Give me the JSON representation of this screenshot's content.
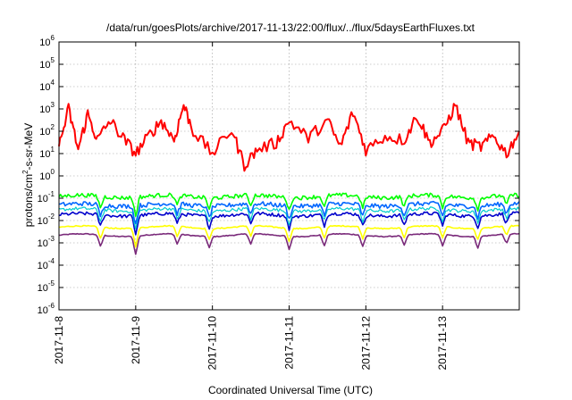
{
  "chart_data": {
    "type": "line",
    "title": "/data/run/goesPlots/archive/2017-11-13/22:00/flux/../flux/5daysEarthFluxes.txt",
    "xlabel": "Coordinated Universal Time (UTC)",
    "ylabel_parts": {
      "base": "protons/cm",
      "sup": "2",
      "rest": "-s-sr-MeV"
    },
    "xlim": [
      "2017-11-08",
      "2017-11-14"
    ],
    "x_ticks": [
      "2017-11-8",
      "2017-11-9",
      "2017-11-10",
      "2017-11-11",
      "2017-11-12",
      "2017-11-13"
    ],
    "y_scale": "log",
    "y_ticks_exp": [
      6,
      5,
      4,
      3,
      2,
      1,
      0,
      -1,
      -2,
      -3,
      -4,
      -5,
      -6
    ],
    "y_tick_base": "10",
    "ylim": [
      1e-06,
      1000000.0
    ],
    "grid": true,
    "legend": "none",
    "series": [
      {
        "color": "#ff0000",
        "width": 2.0,
        "typical": 30,
        "spread": 0.55,
        "anchors": [
          [
            "2017-11-08T00:00",
            20
          ],
          [
            "2017-11-08T03:00",
            1000
          ],
          [
            "2017-11-08T06:00",
            15
          ],
          [
            "2017-11-08T09:00",
            600
          ],
          [
            "2017-11-08T12:00",
            40
          ],
          [
            "2017-11-08T16:00",
            300
          ],
          [
            "2017-11-08T20:00",
            50
          ],
          [
            "2017-11-09T00:00",
            10
          ],
          [
            "2017-11-09T04:00",
            60
          ],
          [
            "2017-11-09T08:00",
            300
          ],
          [
            "2017-11-09T12:00",
            40
          ],
          [
            "2017-11-09T15:00",
            1500
          ],
          [
            "2017-11-09T18:00",
            100
          ],
          [
            "2017-11-10T00:00",
            10
          ],
          [
            "2017-11-10T06:00",
            120
          ],
          [
            "2017-11-10T10:00",
            3
          ],
          [
            "2017-11-10T14:00",
            15
          ],
          [
            "2017-11-10T20:00",
            30
          ],
          [
            "2017-11-11T00:00",
            300
          ],
          [
            "2017-11-11T06:00",
            50
          ],
          [
            "2017-11-11T12:00",
            300
          ],
          [
            "2017-11-11T16:00",
            20
          ],
          [
            "2017-11-11T20:00",
            700
          ],
          [
            "2017-11-12T00:00",
            15
          ],
          [
            "2017-11-12T06:00",
            60
          ],
          [
            "2017-11-12T12:00",
            40
          ],
          [
            "2017-11-12T16:00",
            500
          ],
          [
            "2017-11-12T20:00",
            30
          ],
          [
            "2017-11-13T00:00",
            100
          ],
          [
            "2017-11-13T04:00",
            1500
          ],
          [
            "2017-11-13T08:00",
            30
          ],
          [
            "2017-11-13T12:00",
            20
          ],
          [
            "2017-11-13T16:00",
            60
          ],
          [
            "2017-11-13T20:00",
            10
          ],
          [
            "2017-11-14T00:00",
            100
          ]
        ]
      },
      {
        "color": "#00ff00",
        "width": 1.6,
        "typical": 0.12,
        "spread": 0.18
      },
      {
        "color": "#0066ff",
        "width": 1.6,
        "typical": 0.05,
        "spread": 0.2
      },
      {
        "color": "#00cccc",
        "width": 1.2,
        "typical": 0.03,
        "spread": 0.15
      },
      {
        "color": "#0000cc",
        "width": 1.6,
        "typical": 0.018,
        "spread": 0.15
      },
      {
        "color": "#ffff00",
        "width": 1.6,
        "typical": 0.005,
        "spread": 0.05
      },
      {
        "color": "#7a2a7a",
        "width": 1.6,
        "typical": 0.0022,
        "spread": 0.04
      }
    ],
    "dips": [
      [
        "2017-11-08T13:00",
        0.3
      ],
      [
        "2017-11-09T00:00",
        0.15
      ],
      [
        "2017-11-09T13:00",
        0.35
      ],
      [
        "2017-11-09T23:00",
        0.3
      ],
      [
        "2017-11-10T12:00",
        0.35
      ],
      [
        "2017-11-11T00:00",
        0.25
      ],
      [
        "2017-11-11T11:00",
        0.3
      ],
      [
        "2017-11-11T23:00",
        0.3
      ],
      [
        "2017-11-12T12:00",
        0.35
      ],
      [
        "2017-11-13T00:00",
        0.3
      ],
      [
        "2017-11-13T11:00",
        0.3
      ],
      [
        "2017-11-13T20:00",
        0.35
      ]
    ]
  }
}
